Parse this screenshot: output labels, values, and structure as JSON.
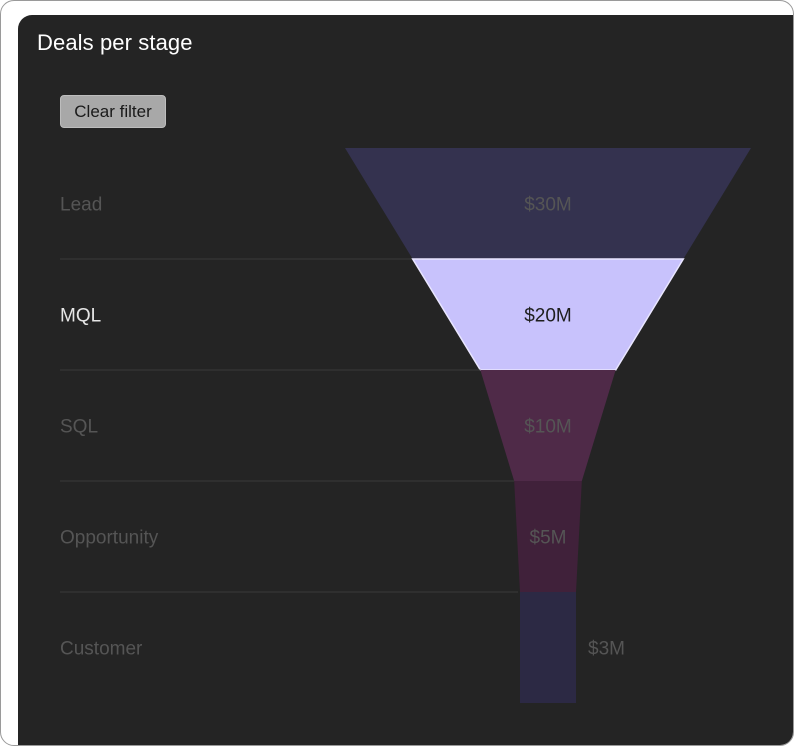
{
  "card": {
    "title": "Deals per stage",
    "clear_filter_label": "Clear filter"
  },
  "chart_data": {
    "type": "funnel",
    "title": "Deals per stage",
    "categories": [
      "Lead",
      "MQL",
      "SQL",
      "Opportunity",
      "Customer"
    ],
    "values": [
      30,
      20,
      10,
      5,
      3
    ],
    "value_labels": [
      "$30M",
      "$20M",
      "$10M",
      "$5M",
      "$3M"
    ],
    "unit": "$M",
    "selected": "MQL",
    "colors": [
      "#34324f",
      "#c8c2fc",
      "#4f2a48",
      "#40213a",
      "#2c2944"
    ],
    "selected_text_color": "#1e1e1e",
    "dim_text_color": "#555555",
    "active_label_color": "#e6e6e6",
    "divider_color": "#3a3a3a"
  }
}
